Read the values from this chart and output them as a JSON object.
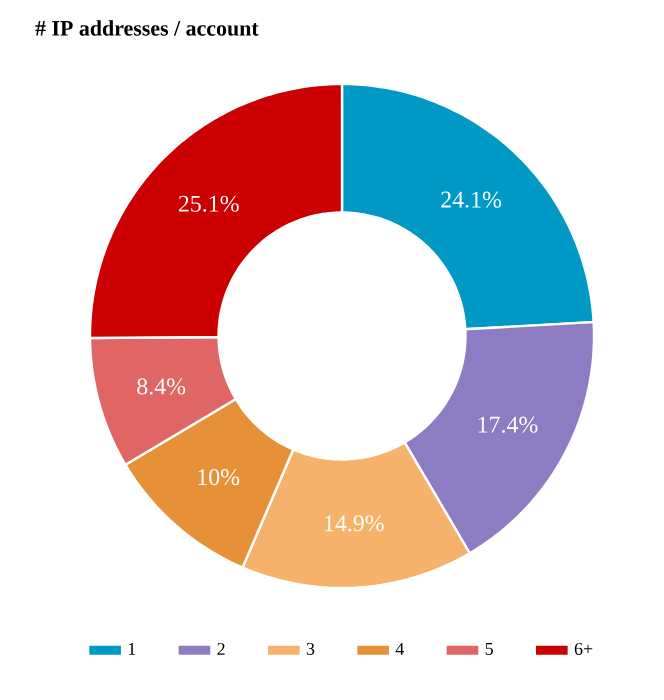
{
  "chart_data": {
    "type": "donut",
    "title": "# IP addresses / account",
    "categories": [
      "1",
      "2",
      "3",
      "4",
      "5",
      "6+"
    ],
    "values": [
      24.1,
      17.4,
      14.9,
      10,
      8.4,
      25.1
    ],
    "value_labels": [
      "24.1%",
      "17.4%",
      "14.9%",
      "10%",
      "8.4%",
      "25.1%"
    ],
    "colors": [
      "#0099c6",
      "#8e7cc3",
      "#f6b26b",
      "#e69138",
      "#e06666",
      "#cc0000"
    ],
    "legend": "bottom"
  }
}
